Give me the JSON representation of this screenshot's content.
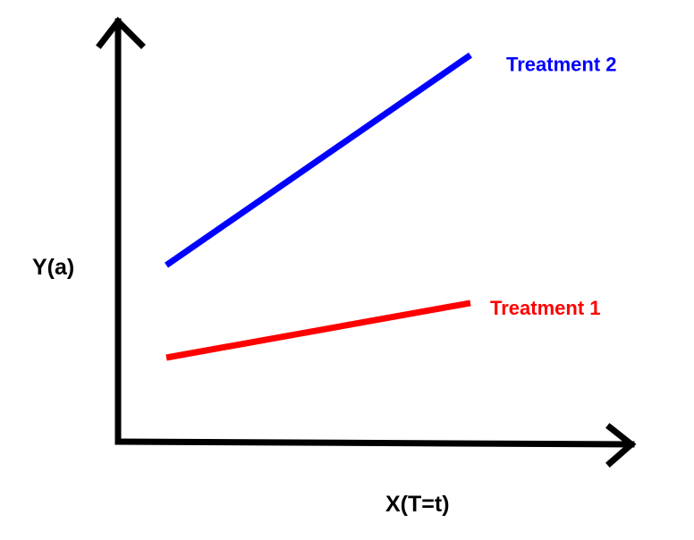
{
  "chart_data": {
    "type": "line",
    "title": "",
    "xlabel": "X(T=t)",
    "ylabel": "Y(a)",
    "grid": false,
    "legend": "inline labels at right end of each line",
    "axis_color": "#000000",
    "series": [
      {
        "name": "Treatment 1",
        "color": "#ff0000",
        "x": [
          0,
          1
        ],
        "y": [
          0.2,
          0.33
        ]
      },
      {
        "name": "Treatment 2",
        "color": "#0000ff",
        "x": [
          0,
          1
        ],
        "y": [
          0.42,
          0.92
        ]
      }
    ]
  }
}
